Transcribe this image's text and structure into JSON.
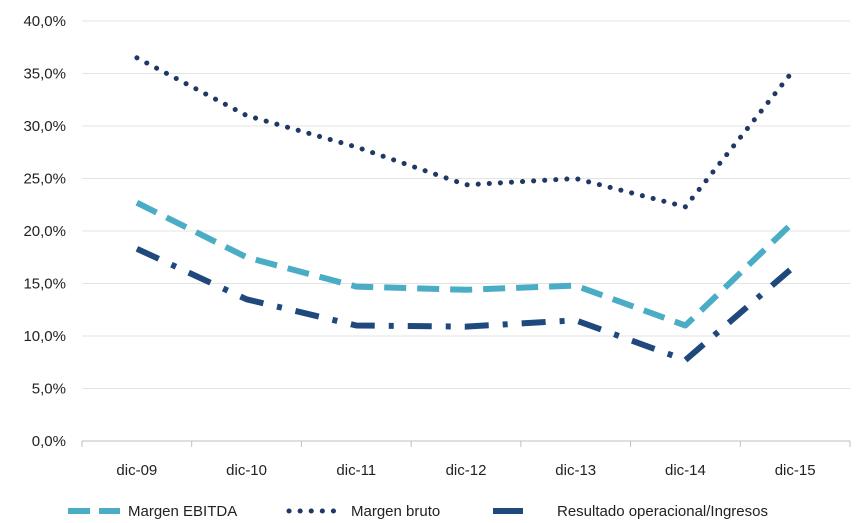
{
  "chart_data": {
    "type": "line",
    "categories": [
      "dic-09",
      "dic-10",
      "dic-11",
      "dic-12",
      "dic-13",
      "dic-14",
      "dic-15"
    ],
    "yticks": [
      "0,0%",
      "5,0%",
      "10,0%",
      "15,0%",
      "20,0%",
      "25,0%",
      "30,0%",
      "35,0%",
      "40,0%"
    ],
    "ylim": [
      0,
      40
    ],
    "grid": true,
    "legend_position": "bottom",
    "series": [
      {
        "name": "Margen EBITDA",
        "values": [
          22.7,
          17.5,
          14.7,
          14.4,
          14.8,
          11.0,
          21.0
        ],
        "color": "#4bacc6",
        "style": "dash"
      },
      {
        "name": "Margen bruto",
        "values": [
          36.5,
          31.0,
          28.0,
          24.4,
          25.0,
          22.3,
          35.5
        ],
        "color": "#1f3864",
        "style": "dot"
      },
      {
        "name": "Resultado operacional/Ingresos",
        "values": [
          18.3,
          13.5,
          11.0,
          10.9,
          11.5,
          7.7,
          16.7
        ],
        "color": "#1f497d",
        "style": "dashdot"
      }
    ]
  }
}
